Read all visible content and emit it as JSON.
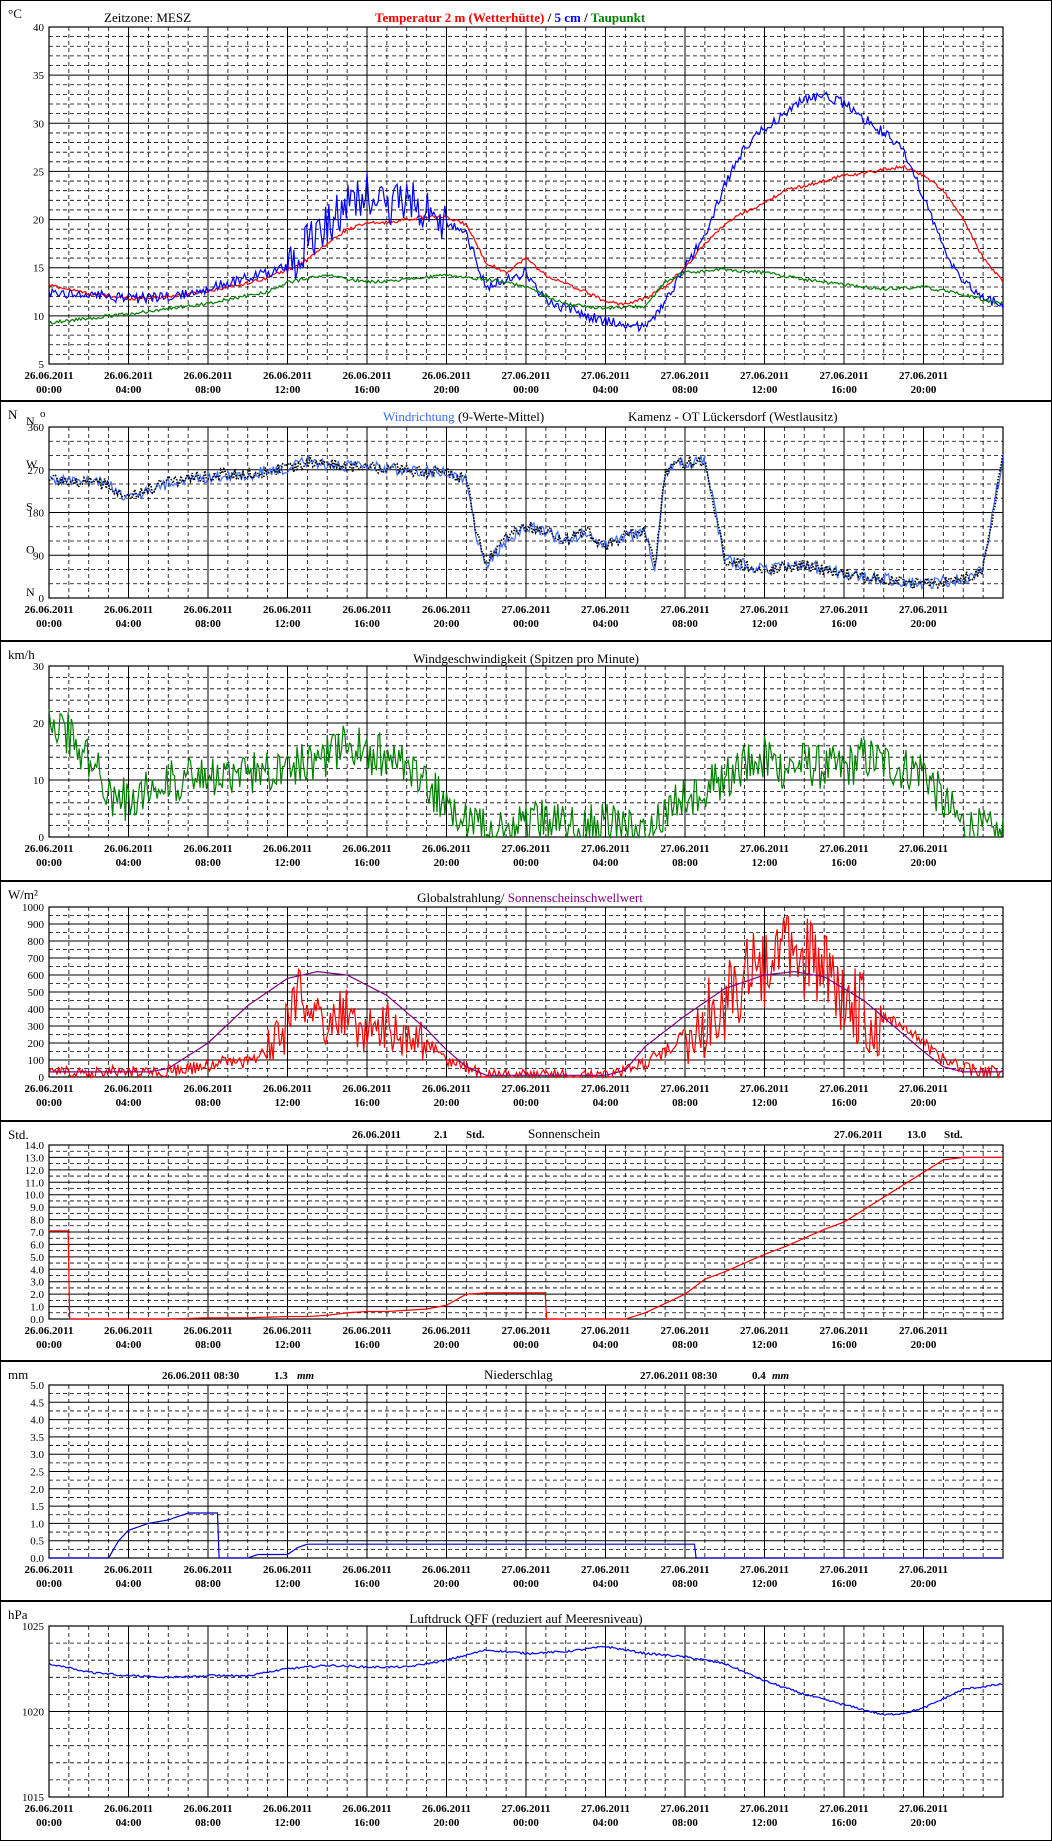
{
  "colors": {
    "temp": "#ff0000",
    "soil5cm": "#0000ff",
    "dew": "#008000",
    "winddir": "#3b6cff",
    "winddir_avg": "#000000",
    "wind": "#008000",
    "global": "#ff0000",
    "threshold": "#800080",
    "sunshine": "#ff0000",
    "precip": "#0000cc",
    "pressure": "#0000ff",
    "grid": "#000000",
    "panel_border": "#000000"
  },
  "x_labels": [
    {
      "date": "26.06.2011",
      "time": "00:00"
    },
    {
      "date": "26.06.2011",
      "time": "04:00"
    },
    {
      "date": "26.06.2011",
      "time": "08:00"
    },
    {
      "date": "26.06.2011",
      "time": "12:00"
    },
    {
      "date": "26.06.2011",
      "time": "16:00"
    },
    {
      "date": "26.06.2011",
      "time": "20:00"
    },
    {
      "date": "27.06.2011",
      "time": "00:00"
    },
    {
      "date": "27.06.2011",
      "time": "04:00"
    },
    {
      "date": "27.06.2011",
      "time": "08:00"
    },
    {
      "date": "27.06.2011",
      "time": "12:00"
    },
    {
      "date": "27.06.2011",
      "time": "16:00"
    },
    {
      "date": "27.06.2011",
      "time": "20:00"
    }
  ],
  "chart_data": [
    {
      "type": "line",
      "id": "temperature",
      "unit": "°C",
      "timezone_label": "Zeitzone: MESZ",
      "title_parts": [
        "Temperatur 2 m (Wetterhütte)",
        "  /  ",
        "5 cm",
        " / ",
        "Taupunkt"
      ],
      "ylim": [
        5,
        40
      ],
      "yticks": [
        "5",
        "10",
        "15",
        "20",
        "25",
        "30",
        "35",
        "40"
      ],
      "series": [
        {
          "name": "Temperatur 2 m (Wetterhütte)",
          "color": "#ff0000",
          "x": [
            0,
            2,
            4,
            6,
            8,
            10,
            11,
            12,
            13,
            14,
            15,
            16,
            17,
            18,
            19,
            20,
            21,
            22,
            23,
            24,
            25,
            26,
            27,
            28,
            29,
            30,
            31,
            32,
            33,
            34,
            35,
            36,
            37,
            38,
            39,
            40,
            41,
            42,
            43,
            44,
            45,
            46,
            47,
            48
          ],
          "values": [
            13.2,
            12.3,
            11.8,
            12.0,
            12.6,
            13.4,
            14.0,
            14.8,
            15.8,
            17.5,
            19.0,
            19.6,
            19.7,
            20.0,
            20.3,
            20.2,
            19.5,
            15.5,
            14.5,
            16.0,
            14.2,
            13.3,
            12.5,
            11.5,
            11.2,
            11.8,
            13.0,
            15.0,
            17.5,
            19.5,
            20.8,
            21.7,
            23.0,
            23.5,
            24.0,
            24.6,
            24.8,
            25.2,
            25.5,
            24.6,
            23.0,
            20.0,
            16.0,
            13.5
          ]
        },
        {
          "name": "5 cm",
          "color": "#0000ff",
          "x": [
            0,
            2,
            4,
            6,
            8,
            10,
            11,
            12,
            13,
            14,
            15,
            16,
            17,
            18,
            19,
            20,
            21,
            22,
            23,
            24,
            25,
            26,
            27,
            28,
            29,
            30,
            31,
            32,
            33,
            34,
            35,
            36,
            37,
            38,
            39,
            40,
            41,
            42,
            43,
            44,
            45,
            46,
            47,
            48
          ],
          "values": [
            12.5,
            12.2,
            11.8,
            12.0,
            12.8,
            14.0,
            14.5,
            15.0,
            17.5,
            19.5,
            21.5,
            23.0,
            21.0,
            22.0,
            21.0,
            19.5,
            18.5,
            13.0,
            13.8,
            14.5,
            11.5,
            10.8,
            10.0,
            9.5,
            9.2,
            8.8,
            11.5,
            15.0,
            18.5,
            23.5,
            27.5,
            29.5,
            31.0,
            32.5,
            33.0,
            32.0,
            30.5,
            29.0,
            27.0,
            22.5,
            17.0,
            13.5,
            12.0,
            11.0
          ],
          "noise": 2.2,
          "noise_range": [
            12,
            20
          ]
        },
        {
          "name": "Taupunkt",
          "color": "#008000",
          "x": [
            0,
            4,
            8,
            11,
            12,
            14,
            16,
            18,
            20,
            21,
            22,
            23,
            24,
            26,
            28,
            30,
            31,
            32,
            34,
            36,
            38,
            40,
            42,
            44,
            46,
            48
          ],
          "values": [
            9.3,
            10.2,
            11.3,
            12.5,
            13.5,
            14.2,
            13.5,
            13.8,
            14.2,
            14.0,
            13.8,
            13.5,
            13.0,
            11.2,
            10.8,
            11.0,
            13.5,
            14.5,
            14.8,
            14.5,
            13.8,
            13.2,
            12.8,
            13.0,
            12.2,
            11.2
          ]
        }
      ]
    },
    {
      "type": "scatter",
      "id": "winddirection",
      "unit": "N",
      "station": "Kamenz - OT Lückersdorf (Westlausitz)",
      "title": "Windrichtung",
      "title_suffix": " (9-Werte-Mittel)",
      "ylim": [
        0,
        360
      ],
      "yticks": [
        "0",
        "90",
        "180",
        "270",
        "360"
      ],
      "compass": [
        "N",
        "O",
        "S",
        "W",
        "N"
      ],
      "series": [
        {
          "name": "Windrichtung",
          "color": "#3b6cff",
          "x": [
            0,
            2,
            3,
            4,
            6,
            8,
            10,
            12,
            13,
            14,
            16,
            18,
            20,
            21,
            21.5,
            22,
            23,
            24,
            25,
            26,
            27,
            28,
            29,
            30,
            30.5,
            31,
            32,
            33,
            34,
            36,
            38,
            40,
            42,
            44,
            46,
            47,
            48
          ],
          "values": [
            250,
            245,
            240,
            210,
            240,
            255,
            260,
            270,
            290,
            280,
            275,
            270,
            265,
            250,
            130,
            70,
            120,
            150,
            140,
            120,
            140,
            110,
            130,
            140,
            60,
            270,
            285,
            290,
            80,
            60,
            70,
            50,
            40,
            30,
            40,
            60,
            300
          ]
        },
        {
          "name": "9-Werte-Mittel",
          "color": "#000000",
          "x": [
            0,
            2,
            3,
            4,
            6,
            8,
            10,
            12,
            13,
            14,
            16,
            18,
            20,
            21,
            21.5,
            22,
            23,
            24,
            25,
            26,
            27,
            28,
            29,
            30,
            30.5,
            31,
            32,
            33,
            34,
            36,
            38,
            40,
            42,
            44,
            46,
            47,
            48
          ],
          "values": [
            250,
            245,
            238,
            215,
            245,
            258,
            262,
            272,
            285,
            280,
            275,
            270,
            262,
            250,
            135,
            75,
            125,
            150,
            140,
            120,
            140,
            110,
            130,
            140,
            70,
            270,
            285,
            290,
            80,
            60,
            70,
            50,
            40,
            30,
            40,
            60,
            300
          ]
        }
      ]
    },
    {
      "type": "line",
      "id": "windspeed",
      "unit": "km/h",
      "title": "Windgeschwindigkeit (Spitzen pro Minute)",
      "ylim": [
        0,
        30
      ],
      "yticks": [
        "0",
        "10",
        "20",
        "30"
      ],
      "series": [
        {
          "name": "Windgeschwindigkeit",
          "color": "#008000",
          "x": [
            0,
            1,
            2,
            3,
            4,
            5,
            6,
            8,
            10,
            12,
            14,
            15,
            16,
            17,
            18,
            19,
            20,
            21,
            22,
            23,
            24,
            25,
            26,
            27,
            28,
            29,
            30,
            31,
            32,
            33,
            34,
            35,
            36,
            37,
            38,
            39,
            40,
            41,
            42,
            43,
            44,
            45,
            46,
            47,
            48
          ],
          "values": [
            22,
            18,
            14,
            8,
            6,
            9,
            10,
            10,
            11,
            13,
            14,
            16,
            15,
            14,
            12,
            9,
            6,
            3,
            1,
            0.5,
            2,
            3,
            2,
            2,
            2,
            1,
            1,
            4,
            7,
            9,
            10,
            13,
            14,
            12,
            13,
            12,
            12,
            14,
            13,
            12,
            12,
            6,
            2,
            1,
            0
          ],
          "noise": 4.0
        }
      ]
    },
    {
      "type": "line",
      "id": "globalradiation",
      "unit": "W/m²",
      "title_parts": [
        "Globalstrahlung/ ",
        "Sonnenscheinschwellwert"
      ],
      "ylim": [
        0,
        1000
      ],
      "yticks": [
        "0",
        "100",
        "200",
        "300",
        "400",
        "500",
        "600",
        "700",
        "800",
        "900",
        "1000"
      ],
      "series": [
        {
          "name": "Globalstrahlung",
          "color": "#ff0000",
          "x": [
            0,
            5,
            5.5,
            6,
            8,
            9,
            10,
            11,
            12,
            12.5,
            13,
            13.5,
            14,
            15,
            16,
            17,
            18,
            19,
            20,
            21,
            22,
            24,
            28,
            29,
            30,
            31,
            32,
            33,
            34,
            35,
            36,
            37,
            38,
            39,
            40,
            41,
            42,
            43,
            44,
            45,
            46,
            47,
            48
          ],
          "values": [
            30,
            30,
            30,
            40,
            60,
            100,
            80,
            150,
            300,
            500,
            400,
            350,
            300,
            400,
            250,
            300,
            250,
            200,
            100,
            50,
            10,
            10,
            10,
            30,
            80,
            150,
            250,
            350,
            450,
            600,
            650,
            750,
            700,
            600,
            500,
            400,
            350,
            300,
            200,
            100,
            50,
            30,
            30
          ],
          "noise": 150,
          "noise_range": [
            11,
            19
          ],
          "noise2": 250,
          "noise2_range": [
            32,
            42
          ]
        },
        {
          "name": "Sonnenscheinschwellwert",
          "color": "#800080",
          "x": [
            0,
            5,
            6,
            8,
            10,
            12,
            13.5,
            15,
            17,
            19,
            20,
            21,
            22,
            24,
            28,
            29,
            30,
            32,
            34,
            36,
            37.5,
            39,
            41,
            43,
            44,
            45,
            46,
            48
          ],
          "values": [
            30,
            30,
            50,
            200,
            420,
            580,
            620,
            600,
            480,
            280,
            160,
            60,
            10,
            10,
            10,
            40,
            180,
            360,
            520,
            600,
            620,
            590,
            450,
            250,
            150,
            60,
            30,
            30
          ]
        }
      ]
    },
    {
      "type": "line",
      "id": "sunshine",
      "unit": "Std.",
      "title": "Sonnenschein",
      "day1": {
        "date": "26.06.2011",
        "value": "2.1",
        "unit": "Std."
      },
      "day2": {
        "date": "27.06.2011",
        "value": "13.0",
        "unit": "Std."
      },
      "ylim": [
        0,
        14
      ],
      "yticks": [
        "0.0",
        "1.0",
        "2.0",
        "3.0",
        "4.0",
        "5.0",
        "6.0",
        "7.0",
        "8.0",
        "9.0",
        "10.0",
        "11.0",
        "12.0",
        "13.0",
        "14.0"
      ],
      "series": [
        {
          "name": "Sonnenschein",
          "color": "#ff0000",
          "x": [
            0,
            1,
            1.01,
            6,
            8,
            10,
            12,
            13,
            14,
            15,
            16,
            17,
            18,
            19,
            20,
            21,
            22,
            25,
            25.01,
            29,
            30,
            32,
            33,
            34,
            35,
            36,
            37,
            38,
            39,
            40,
            41,
            42,
            43,
            44,
            45,
            46,
            47,
            48
          ],
          "values": [
            7.1,
            7.1,
            0,
            0,
            0.1,
            0.1,
            0.2,
            0.2,
            0.3,
            0.5,
            0.6,
            0.6,
            0.7,
            0.8,
            1.1,
            2.0,
            2.1,
            2.1,
            0,
            0,
            0.5,
            2.0,
            3.2,
            3.8,
            4.5,
            5.2,
            5.8,
            6.5,
            7.2,
            7.8,
            8.8,
            9.8,
            10.8,
            11.8,
            12.8,
            13.0,
            13.0,
            13.0
          ]
        }
      ]
    },
    {
      "type": "line",
      "id": "precipitation",
      "unit": "mm",
      "title": "Niederschlag",
      "day1": {
        "date": "26.06.2011 08:30",
        "value": "1.3",
        "unit": "mm"
      },
      "day2": {
        "date": "27.06.2011 08:30",
        "value": "0.4",
        "unit": "mm"
      },
      "ylim": [
        0,
        5
      ],
      "yticks": [
        "0.0",
        "0.5",
        "1.0",
        "1.5",
        "2.0",
        "2.5",
        "3.0",
        "3.5",
        "4.0",
        "4.5",
        "5.0"
      ],
      "series": [
        {
          "name": "Niederschlag",
          "color": "#0000cc",
          "x": [
            0,
            3,
            3.5,
            4,
            5,
            6,
            7,
            8,
            8.5,
            8.51,
            10,
            10.5,
            12,
            12.5,
            13,
            14,
            20,
            24,
            30,
            32.5,
            32.51,
            48
          ],
          "values": [
            0,
            0,
            0.5,
            0.8,
            1.0,
            1.1,
            1.3,
            1.3,
            1.3,
            0,
            0,
            0.1,
            0.1,
            0.3,
            0.4,
            0.4,
            0.4,
            0.4,
            0.4,
            0.4,
            0,
            0
          ]
        }
      ]
    },
    {
      "type": "line",
      "id": "pressure",
      "unit": "hPa",
      "title": "Luftdruck QFF (reduziert auf Meeresniveau)",
      "ylim": [
        1015,
        1025
      ],
      "yticks": [
        "1015",
        "1020",
        "1025"
      ],
      "series": [
        {
          "name": "Luftdruck QFF",
          "color": "#0000ff",
          "x": [
            0,
            2,
            4,
            6,
            8,
            10,
            12,
            14,
            16,
            18,
            20,
            22,
            24,
            26,
            28,
            29,
            30,
            32,
            34,
            36,
            38,
            40,
            42,
            43,
            44,
            46,
            48
          ],
          "values": [
            1022.8,
            1022.3,
            1022.1,
            1022.0,
            1022.1,
            1022.1,
            1022.5,
            1022.7,
            1022.6,
            1022.6,
            1023.0,
            1023.6,
            1023.4,
            1023.5,
            1023.8,
            1023.6,
            1023.4,
            1023.2,
            1022.8,
            1021.8,
            1021.0,
            1020.4,
            1019.8,
            1019.9,
            1020.2,
            1021.3,
            1021.6
          ]
        }
      ]
    }
  ]
}
